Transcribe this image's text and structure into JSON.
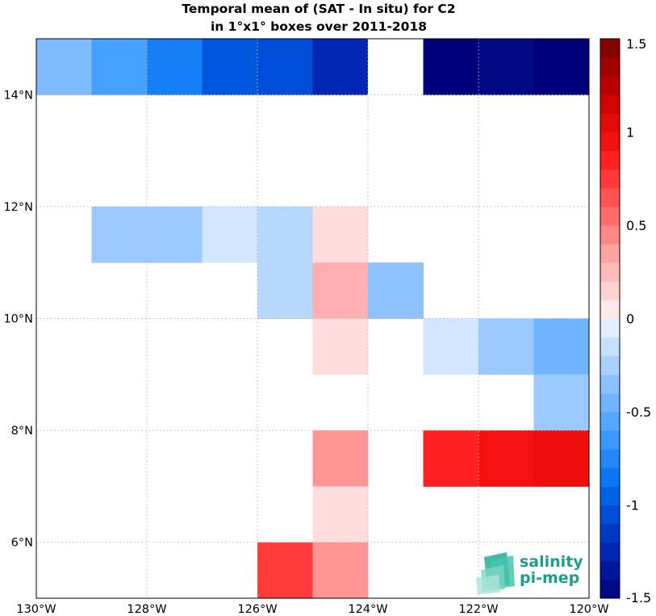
{
  "chart_data": {
    "type": "heatmap",
    "title": "Temporal mean of (SAT - In situ) for C2",
    "subtitle": "in 1°x1° boxes over 2011-2018",
    "xlabel": "",
    "ylabel": "",
    "x_range": [
      -130,
      -120
    ],
    "y_range": [
      5,
      15
    ],
    "x_ticks": [
      {
        "value": -130,
        "label": "130°W"
      },
      {
        "value": -128,
        "label": "128°W"
      },
      {
        "value": -126,
        "label": "126°W"
      },
      {
        "value": -124,
        "label": "124°W"
      },
      {
        "value": -122,
        "label": "122°W"
      },
      {
        "value": -120,
        "label": "120°W"
      }
    ],
    "y_ticks": [
      {
        "value": 6,
        "label": "6°N"
      },
      {
        "value": 8,
        "label": "8°N"
      },
      {
        "value": 10,
        "label": "10°N"
      },
      {
        "value": 12,
        "label": "12°N"
      },
      {
        "value": 14,
        "label": "14°N"
      }
    ],
    "grid": true,
    "colorbar": {
      "position": "right",
      "range": [
        -1.5,
        1.5
      ],
      "levels": 30,
      "ticks": [
        {
          "value": 1.5,
          "label": "1.5"
        },
        {
          "value": 1,
          "label": "1"
        },
        {
          "value": 0.5,
          "label": "0.5"
        },
        {
          "value": 0,
          "label": "0"
        },
        {
          "value": -0.5,
          "label": "-0.5"
        },
        {
          "value": -1,
          "label": "-1"
        },
        {
          "value": -1.5,
          "label": "-1.5"
        }
      ]
    },
    "cells": [
      {
        "lon": -130,
        "lat": 14,
        "value": -0.4
      },
      {
        "lon": -129,
        "lat": 14,
        "value": -0.6
      },
      {
        "lon": -128,
        "lat": 14,
        "value": -0.8
      },
      {
        "lon": -127,
        "lat": 14,
        "value": -1.0
      },
      {
        "lon": -126,
        "lat": 14,
        "value": -1.05
      },
      {
        "lon": -125,
        "lat": 14,
        "value": -1.25
      },
      {
        "lon": -124,
        "lat": 14,
        "value": 0.0
      },
      {
        "lon": -123,
        "lat": 14,
        "value": -1.5
      },
      {
        "lon": -122,
        "lat": 14,
        "value": -1.45
      },
      {
        "lon": -121,
        "lat": 14,
        "value": -1.5
      },
      {
        "lon": -129,
        "lat": 11,
        "value": -0.3
      },
      {
        "lon": -128,
        "lat": 11,
        "value": -0.3
      },
      {
        "lon": -127,
        "lat": 11,
        "value": -0.1
      },
      {
        "lon": -126,
        "lat": 11,
        "value": -0.2
      },
      {
        "lon": -125,
        "lat": 11,
        "value": 0.1
      },
      {
        "lon": -126,
        "lat": 10,
        "value": -0.2
      },
      {
        "lon": -125,
        "lat": 10,
        "value": 0.3
      },
      {
        "lon": -124,
        "lat": 10,
        "value": -0.35
      },
      {
        "lon": -125,
        "lat": 9,
        "value": 0.1
      },
      {
        "lon": -123,
        "lat": 9,
        "value": -0.1
      },
      {
        "lon": -122,
        "lat": 9,
        "value": -0.3
      },
      {
        "lon": -121,
        "lat": 9,
        "value": -0.45
      },
      {
        "lon": -121,
        "lat": 8,
        "value": -0.3
      },
      {
        "lon": -125,
        "lat": 7,
        "value": 0.4
      },
      {
        "lon": -123,
        "lat": 7,
        "value": 0.85
      },
      {
        "lon": -122,
        "lat": 7,
        "value": 0.95
      },
      {
        "lon": -121,
        "lat": 7,
        "value": 1.0
      },
      {
        "lon": -125,
        "lat": 6,
        "value": 0.1
      },
      {
        "lon": -126,
        "lat": 5,
        "value": 0.75
      },
      {
        "lon": -125,
        "lat": 5,
        "value": 0.4
      }
    ]
  },
  "logo": {
    "line1": "salinity",
    "line2": "pi-mep",
    "color": "#1f9c8e"
  }
}
